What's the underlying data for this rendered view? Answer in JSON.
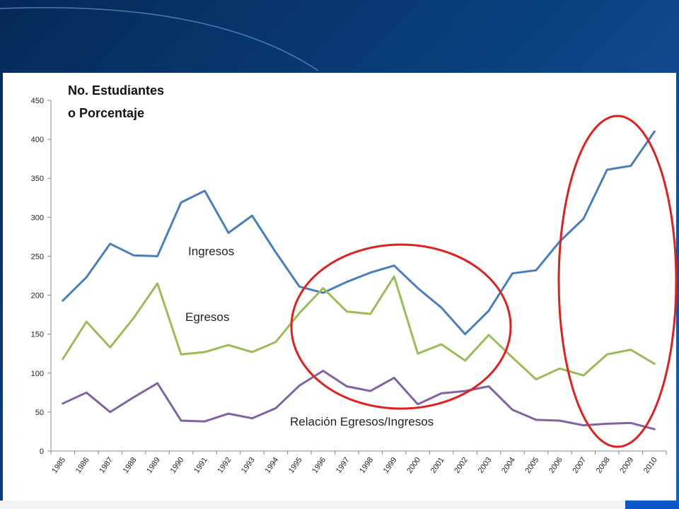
{
  "chart_data": {
    "type": "line",
    "title": [
      "No. Estudiantes",
      "o Porcentaje"
    ],
    "xlabel": "",
    "ylabel": "",
    "ylim": [
      0,
      450
    ],
    "yticks": [
      0,
      50,
      100,
      150,
      200,
      250,
      300,
      350,
      400,
      450
    ],
    "grid": false,
    "legend": "none",
    "categories": [
      "1985",
      "1986",
      "1987",
      "1988",
      "1989",
      "1990",
      "1991",
      "1992",
      "1993",
      "1994",
      "1995",
      "1996",
      "1997",
      "1998",
      "1999",
      "2000",
      "2001",
      "2002",
      "2003",
      "2004",
      "2005",
      "2006",
      "2007",
      "2008",
      "2009",
      "2010"
    ],
    "series": [
      {
        "name": "Ingresos",
        "color": "#4a7ebb",
        "values": [
          193,
          223,
          266,
          251,
          250,
          319,
          334,
          280,
          302,
          255,
          211,
          203,
          217,
          229,
          238,
          209,
          184,
          150,
          180,
          228,
          232,
          269,
          298,
          361,
          366,
          410
        ]
      },
      {
        "name": "Egresos",
        "color": "#9bbb59",
        "values": [
          118,
          166,
          133,
          171,
          215,
          124,
          127,
          136,
          127,
          140,
          177,
          209,
          179,
          176,
          224,
          125,
          137,
          116,
          149,
          120,
          92,
          106,
          97,
          124,
          130,
          112
        ]
      },
      {
        "name": "Relación Egresos/Ingresos",
        "color": "#8064a2",
        "values": [
          61,
          75,
          50,
          69,
          87,
          39,
          38,
          48,
          42,
          55,
          84,
          103,
          83,
          77,
          94,
          60,
          74,
          77,
          83,
          53,
          40,
          39,
          33,
          35,
          36,
          28
        ]
      }
    ],
    "annotations": [
      {
        "text": "Ingresos"
      },
      {
        "text": "Egresos"
      },
      {
        "text": "Relación Egresos/Ingresos"
      }
    ],
    "highlight_color": "#e02020"
  }
}
